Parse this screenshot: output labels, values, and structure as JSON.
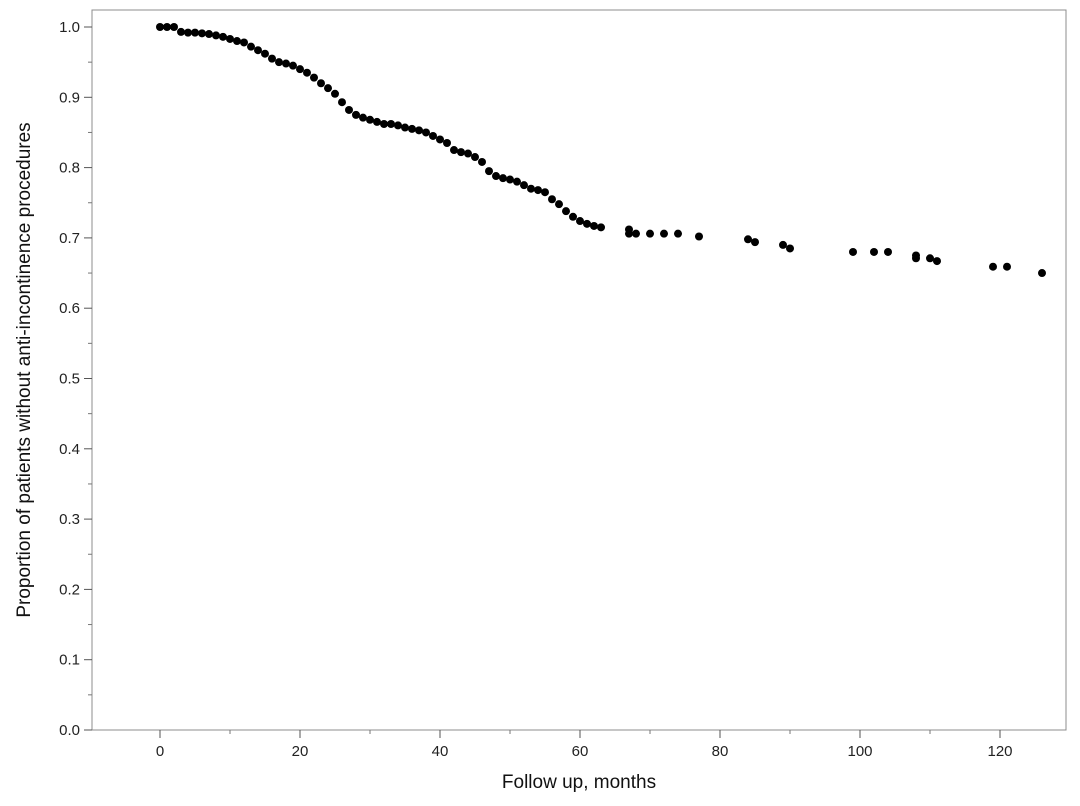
{
  "chart_data": {
    "type": "scatter",
    "title": "",
    "xlabel": "Follow up, months",
    "ylabel": "Proportion of patients without anti-incontinence procedures",
    "xlim": [
      -10,
      130
    ],
    "ylim": [
      0,
      1.02
    ],
    "x_ticks": [
      0,
      20,
      40,
      60,
      80,
      100,
      120
    ],
    "x_tick_labels": [
      "0",
      "20",
      "40",
      "60",
      "80",
      "100",
      "120"
    ],
    "y_ticks": [
      0.0,
      0.1,
      0.2,
      0.3,
      0.4,
      0.5,
      0.6,
      0.7,
      0.8,
      0.9,
      1.0
    ],
    "y_tick_labels": [
      "0.0",
      "0.1",
      "0.2",
      "0.3",
      "0.4",
      "0.5",
      "0.6",
      "0.7",
      "0.8",
      "0.9",
      "1.0"
    ],
    "grid": false,
    "legend": "none",
    "marker_color": "#000000",
    "series": [
      {
        "points": [
          [
            0,
            1.0
          ],
          [
            1,
            1.0
          ],
          [
            2,
            1.0
          ],
          [
            3,
            0.993
          ],
          [
            4,
            0.992
          ],
          [
            5,
            0.992
          ],
          [
            6,
            0.991
          ],
          [
            7,
            0.99
          ],
          [
            8,
            0.988
          ],
          [
            9,
            0.986
          ],
          [
            10,
            0.983
          ],
          [
            11,
            0.98
          ],
          [
            12,
            0.978
          ],
          [
            13,
            0.972
          ],
          [
            14,
            0.967
          ],
          [
            15,
            0.962
          ],
          [
            16,
            0.955
          ],
          [
            17,
            0.95
          ],
          [
            18,
            0.948
          ],
          [
            19,
            0.945
          ],
          [
            20,
            0.94
          ],
          [
            21,
            0.935
          ],
          [
            22,
            0.928
          ],
          [
            23,
            0.92
          ],
          [
            24,
            0.913
          ],
          [
            25,
            0.905
          ],
          [
            26,
            0.893
          ],
          [
            27,
            0.882
          ],
          [
            28,
            0.875
          ],
          [
            29,
            0.871
          ],
          [
            30,
            0.868
          ],
          [
            31,
            0.865
          ],
          [
            32,
            0.862
          ],
          [
            33,
            0.862
          ],
          [
            34,
            0.86
          ],
          [
            35,
            0.857
          ],
          [
            36,
            0.855
          ],
          [
            37,
            0.853
          ],
          [
            38,
            0.85
          ],
          [
            39,
            0.845
          ],
          [
            40,
            0.84
          ],
          [
            41,
            0.835
          ],
          [
            42,
            0.825
          ],
          [
            43,
            0.822
          ],
          [
            44,
            0.82
          ],
          [
            45,
            0.815
          ],
          [
            46,
            0.808
          ],
          [
            47,
            0.795
          ],
          [
            48,
            0.788
          ],
          [
            49,
            0.785
          ],
          [
            50,
            0.783
          ],
          [
            51,
            0.78
          ],
          [
            52,
            0.775
          ],
          [
            53,
            0.77
          ],
          [
            54,
            0.768
          ],
          [
            55,
            0.765
          ],
          [
            56,
            0.755
          ],
          [
            57,
            0.748
          ],
          [
            58,
            0.738
          ],
          [
            59,
            0.73
          ],
          [
            60,
            0.724
          ],
          [
            61,
            0.72
          ],
          [
            62,
            0.717
          ],
          [
            63,
            0.715
          ],
          [
            67,
            0.712
          ],
          [
            67,
            0.706
          ],
          [
            68,
            0.706
          ],
          [
            70,
            0.706
          ],
          [
            72,
            0.706
          ],
          [
            74,
            0.706
          ],
          [
            77,
            0.702
          ],
          [
            84,
            0.698
          ],
          [
            85,
            0.694
          ],
          [
            89,
            0.69
          ],
          [
            90,
            0.685
          ],
          [
            99,
            0.68
          ],
          [
            102,
            0.68
          ],
          [
            104,
            0.68
          ],
          [
            108,
            0.675
          ],
          [
            108,
            0.671
          ],
          [
            110,
            0.671
          ],
          [
            111,
            0.667
          ],
          [
            119,
            0.659
          ],
          [
            121,
            0.659
          ],
          [
            126,
            0.65
          ]
        ]
      }
    ]
  }
}
